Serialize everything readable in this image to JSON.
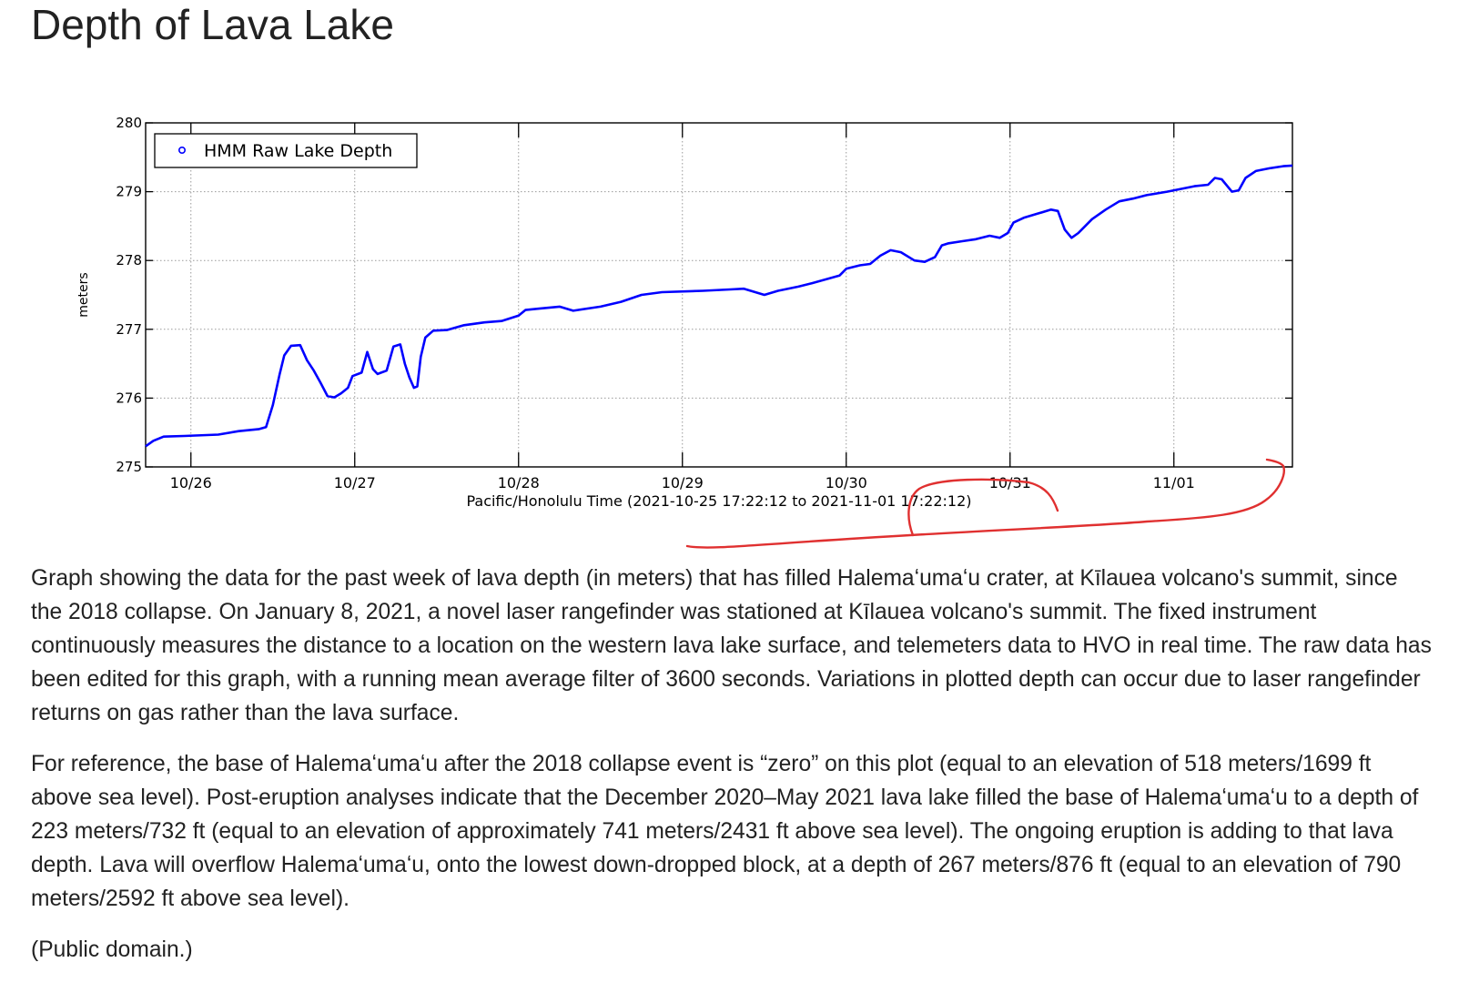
{
  "page": {
    "title": "Depth of Lava Lake",
    "paragraphs": [
      "Graph showing the data for the past week of lava depth (in meters) that has filled Halemaʻumaʻu crater, at Kīlauea volcano's summit, since the 2018 collapse. On January 8, 2021, a novel laser rangefinder was stationed at Kīlauea volcano's summit. The fixed instrument continuously measures the distance to a location on the western lava lake surface, and telemeters data to HVO in real time. The raw data has been edited for this graph, with a running mean average filter of 3600 seconds. Variations in plotted depth can occur due to laser rangefinder returns on gas rather than the lava surface.",
      "For reference, the base of Halemaʻumaʻu after the 2018 collapse event is “zero” on this plot (equal to an elevation of 518 meters/1699 ft above sea level). Post-eruption analyses indicate that the December 2020–May 2021 lava lake filled the base of Halemaʻumaʻu to a depth of 223 meters/732 ft (equal to an elevation of approximately 741 meters/2431 ft above sea level). The ongoing eruption is adding to that lava depth. Lava will overflow Halemaʻumaʻu, onto the lowest down-dropped block, at a depth of 267 meters/876 ft (equal to an elevation of 790 meters/2592 ft above sea level).",
      "(Public domain.)"
    ]
  },
  "colors": {
    "series": "#0000ff",
    "annotation": "#e03030",
    "grid": "#999999"
  },
  "chart_data": {
    "type": "line",
    "title": "",
    "xlabel": "Pacific/Honolulu Time (2021-10-25 17:22:12 to 2021-11-01 17:22:12)",
    "ylabel": "meters",
    "xlim": [
      "2021-10-25 17:22",
      "2021-11-01 17:22"
    ],
    "ylim": [
      275,
      280
    ],
    "x_ticks": [
      {
        "date": "2021-10-26 00:00",
        "label": "10/26"
      },
      {
        "date": "2021-10-27 00:00",
        "label": "10/27"
      },
      {
        "date": "2021-10-28 00:00",
        "label": "10/28"
      },
      {
        "date": "2021-10-29 00:00",
        "label": "10/29"
      },
      {
        "date": "2021-10-30 00:00",
        "label": "10/30"
      },
      {
        "date": "2021-10-31 00:00",
        "label": "10/31"
      },
      {
        "date": "2021-11-01 00:00",
        "label": "11/01"
      }
    ],
    "y_ticks": [
      275,
      276,
      277,
      278,
      279,
      280
    ],
    "grid": true,
    "legend": "top-left",
    "series": [
      {
        "name": "HMM Raw Lake Depth",
        "points": [
          [
            "2021-10-25 17:22",
            275.3
          ],
          [
            "2021-10-25 18:30",
            275.38
          ],
          [
            "2021-10-25 20:00",
            275.44
          ],
          [
            "2021-10-25 23:00",
            275.45
          ],
          [
            "2021-10-26 04:00",
            275.47
          ],
          [
            "2021-10-26 07:00",
            275.52
          ],
          [
            "2021-10-26 10:00",
            275.55
          ],
          [
            "2021-10-26 11:00",
            275.58
          ],
          [
            "2021-10-26 12:00",
            275.9
          ],
          [
            "2021-10-26 13:00",
            276.35
          ],
          [
            "2021-10-26 13:40",
            276.62
          ],
          [
            "2021-10-26 14:40",
            276.76
          ],
          [
            "2021-10-26 16:00",
            276.77
          ],
          [
            "2021-10-26 17:00",
            276.55
          ],
          [
            "2021-10-26 18:00",
            276.4
          ],
          [
            "2021-10-26 19:00",
            276.22
          ],
          [
            "2021-10-26 20:00",
            276.03
          ],
          [
            "2021-10-26 21:00",
            276.01
          ],
          [
            "2021-10-26 22:00",
            276.07
          ],
          [
            "2021-10-26 23:00",
            276.15
          ],
          [
            "2021-10-26 23:40",
            276.32
          ],
          [
            "2021-10-27 01:00",
            276.37
          ],
          [
            "2021-10-27 01:50",
            276.67
          ],
          [
            "2021-10-27 02:40",
            276.42
          ],
          [
            "2021-10-27 03:20",
            276.35
          ],
          [
            "2021-10-27 04:40",
            276.4
          ],
          [
            "2021-10-27 05:40",
            276.75
          ],
          [
            "2021-10-27 06:40",
            276.78
          ],
          [
            "2021-10-27 07:20",
            276.5
          ],
          [
            "2021-10-27 08:00",
            276.3
          ],
          [
            "2021-10-27 08:40",
            276.15
          ],
          [
            "2021-10-27 09:10",
            276.17
          ],
          [
            "2021-10-27 09:40",
            276.6
          ],
          [
            "2021-10-27 10:20",
            276.88
          ],
          [
            "2021-10-27 11:30",
            276.98
          ],
          [
            "2021-10-27 13:30",
            276.99
          ],
          [
            "2021-10-27 16:00",
            277.06
          ],
          [
            "2021-10-27 19:00",
            277.1
          ],
          [
            "2021-10-27 21:30",
            277.12
          ],
          [
            "2021-10-28 00:00",
            277.2
          ],
          [
            "2021-10-28 01:00",
            277.28
          ],
          [
            "2021-10-28 03:00",
            277.3
          ],
          [
            "2021-10-28 06:00",
            277.33
          ],
          [
            "2021-10-28 08:00",
            277.27
          ],
          [
            "2021-10-28 12:00",
            277.33
          ],
          [
            "2021-10-28 15:00",
            277.4
          ],
          [
            "2021-10-28 18:00",
            277.5
          ],
          [
            "2021-10-28 21:00",
            277.54
          ],
          [
            "2021-10-29 03:00",
            277.56
          ],
          [
            "2021-10-29 07:00",
            277.58
          ],
          [
            "2021-10-29 09:00",
            277.59
          ],
          [
            "2021-10-29 12:00",
            277.5
          ],
          [
            "2021-10-29 14:00",
            277.56
          ],
          [
            "2021-10-29 17:00",
            277.62
          ],
          [
            "2021-10-29 19:00",
            277.67
          ],
          [
            "2021-10-29 23:00",
            277.78
          ],
          [
            "2021-10-30 00:00",
            277.88
          ],
          [
            "2021-10-30 02:00",
            277.93
          ],
          [
            "2021-10-30 03:30",
            277.95
          ],
          [
            "2021-10-30 05:00",
            278.07
          ],
          [
            "2021-10-30 06:30",
            278.15
          ],
          [
            "2021-10-30 08:00",
            278.12
          ],
          [
            "2021-10-30 10:00",
            278.0
          ],
          [
            "2021-10-30 11:30",
            277.98
          ],
          [
            "2021-10-30 13:00",
            278.05
          ],
          [
            "2021-10-30 14:00",
            278.22
          ],
          [
            "2021-10-30 15:00",
            278.25
          ],
          [
            "2021-10-30 17:00",
            278.28
          ],
          [
            "2021-10-30 19:00",
            278.31
          ],
          [
            "2021-10-30 21:00",
            278.36
          ],
          [
            "2021-10-30 22:30",
            278.33
          ],
          [
            "2021-10-30 23:40",
            278.4
          ],
          [
            "2021-10-31 00:30",
            278.55
          ],
          [
            "2021-10-31 02:00",
            278.62
          ],
          [
            "2021-10-31 04:00",
            278.68
          ],
          [
            "2021-10-31 06:00",
            278.74
          ],
          [
            "2021-10-31 07:00",
            278.72
          ],
          [
            "2021-10-31 08:00",
            278.45
          ],
          [
            "2021-10-31 09:00",
            278.33
          ],
          [
            "2021-10-31 10:00",
            278.4
          ],
          [
            "2021-10-31 12:00",
            278.6
          ],
          [
            "2021-10-31 14:00",
            278.74
          ],
          [
            "2021-10-31 16:00",
            278.86
          ],
          [
            "2021-10-31 18:00",
            278.9
          ],
          [
            "2021-10-31 20:00",
            278.95
          ],
          [
            "2021-10-31 23:00",
            279.0
          ],
          [
            "2021-11-01 00:00",
            279.02
          ],
          [
            "2021-11-01 03:00",
            279.08
          ],
          [
            "2021-11-01 05:00",
            279.1
          ],
          [
            "2021-11-01 06:00",
            279.2
          ],
          [
            "2021-11-01 07:00",
            279.18
          ],
          [
            "2021-11-01 08:30",
            279.0
          ],
          [
            "2021-11-01 09:30",
            279.02
          ],
          [
            "2021-11-01 10:30",
            279.2
          ],
          [
            "2021-11-01 12:00",
            279.3
          ],
          [
            "2021-11-01 14:00",
            279.34
          ],
          [
            "2021-11-01 16:00",
            279.37
          ],
          [
            "2021-11-01 17:22",
            279.38
          ]
        ]
      }
    ]
  }
}
